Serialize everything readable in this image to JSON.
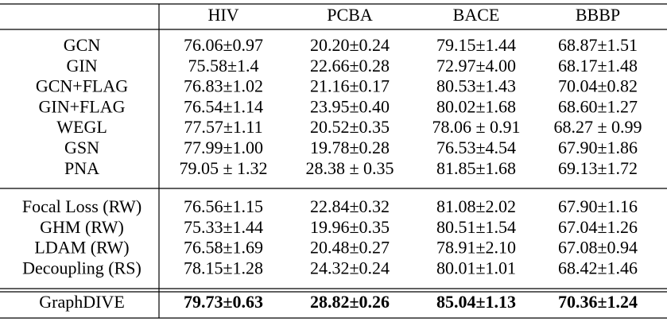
{
  "table": {
    "header": [
      "HIV",
      "PCBA",
      "BACE",
      "BBBP"
    ],
    "groups": [
      [
        {
          "label": "GCN",
          "cells": [
            "76.06±0.97",
            "20.20±0.24",
            "79.15±1.44",
            "68.87±1.51"
          ]
        },
        {
          "label": "GIN",
          "cells": [
            "75.58±1.4",
            "22.66±0.28",
            "72.97±4.00",
            "68.17±1.48"
          ]
        },
        {
          "label": "GCN+FLAG",
          "cells": [
            "76.83±1.02",
            "21.16±0.17",
            "80.53±1.43",
            "70.04±0.82"
          ]
        },
        {
          "label": "GIN+FLAG",
          "cells": [
            "76.54±1.14",
            "23.95±0.40",
            "80.02±1.68",
            "68.60±1.27"
          ]
        },
        {
          "label": "WEGL",
          "cells": [
            "77.57±1.11",
            "20.52±0.35",
            "78.06 ± 0.91",
            "68.27 ± 0.99"
          ]
        },
        {
          "label": "GSN",
          "cells": [
            "77.99±1.00",
            "19.78±0.28",
            "76.53±4.54",
            "67.90±1.86"
          ]
        },
        {
          "label": "PNA",
          "cells": [
            "79.05 ± 1.32",
            "28.38 ± 0.35",
            "81.85±1.68",
            "69.13±1.72"
          ]
        }
      ],
      [
        {
          "label": "Focal Loss (RW)",
          "cells": [
            "76.56±1.15",
            "22.84±0.32",
            "81.08±2.02",
            "67.90±1.16"
          ]
        },
        {
          "label": "GHM (RW)",
          "cells": [
            "75.33±1.44",
            "19.96±0.35",
            "80.51±1.54",
            "67.04±1.26"
          ]
        },
        {
          "label": "LDAM (RW)",
          "cells": [
            "76.58±1.69",
            "20.48±0.27",
            "78.91±2.10",
            "67.08±0.94"
          ]
        },
        {
          "label": "Decoupling (RS)",
          "cells": [
            "78.15±1.28",
            "24.32±0.24",
            "80.01±1.01",
            "68.42±1.46"
          ]
        }
      ],
      [
        {
          "label": "GraphDIVE",
          "cells": [
            "79.73±0.63",
            "28.82±0.26",
            "85.04±1.13",
            "70.36±1.24"
          ],
          "bold": true
        }
      ]
    ]
  }
}
